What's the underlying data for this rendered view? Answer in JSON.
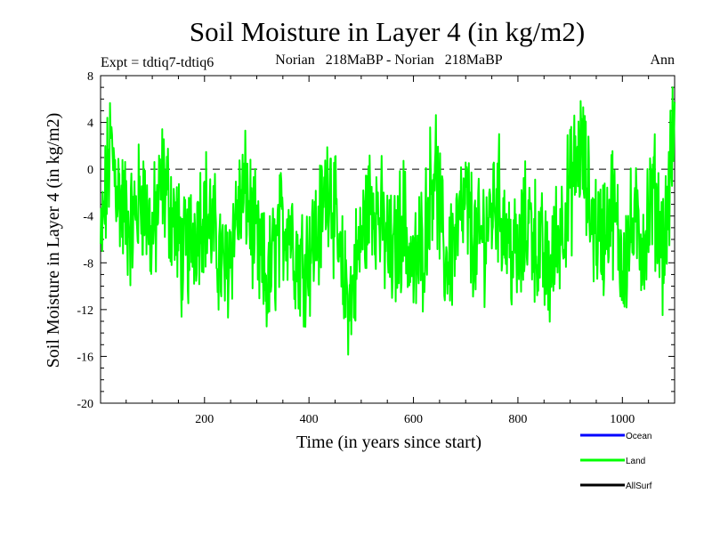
{
  "chart_data": {
    "type": "line",
    "title": "Soil Moisture in Layer 4 (in kg/m2)",
    "subtitle_left": "Expt = tdtiq7-tdtiq6",
    "subtitle_center": "Norian   218MaBP - Norian   218MaBP",
    "subtitle_right": "Ann",
    "xlabel": "Time (in years since start)",
    "ylabel": "Soil Moisture in Layer 4 (in kg/m2)",
    "xlim": [
      1,
      1100
    ],
    "ylim": [
      -20,
      8
    ],
    "x_ticks": [
      200,
      400,
      600,
      800,
      1000
    ],
    "y_ticks": [
      -20,
      -16,
      -12,
      -8,
      -4,
      0,
      4,
      8
    ],
    "reference_line": 0,
    "legend": [
      {
        "name": "Ocean",
        "color": "#0000ff"
      },
      {
        "name": "Land",
        "color": "#00ff00"
      },
      {
        "name": "AllSurf",
        "color": "#000000"
      }
    ],
    "series": [
      {
        "name": "Land",
        "color": "#00ff00",
        "x": [
          1,
          20,
          40,
          60,
          80,
          100,
          120,
          140,
          160,
          180,
          200,
          220,
          240,
          260,
          280,
          300,
          320,
          340,
          360,
          380,
          400,
          420,
          440,
          460,
          480,
          500,
          520,
          540,
          560,
          580,
          600,
          620,
          640,
          660,
          680,
          700,
          720,
          740,
          760,
          780,
          800,
          820,
          840,
          860,
          880,
          900,
          920,
          940,
          960,
          980,
          1000,
          1020,
          1040,
          1060,
          1080,
          1100
        ],
        "values": [
          -7,
          2,
          -3,
          -5,
          -2,
          -6,
          -1,
          -4,
          -8,
          -5,
          -3,
          -6,
          -9,
          -4,
          -2,
          -7,
          -10,
          -6,
          -4,
          -8,
          -7,
          -5,
          0,
          -9,
          -11,
          -6,
          -2,
          -5,
          -8,
          -4,
          -9,
          -6,
          1,
          -8,
          -6,
          -3,
          -7,
          -5,
          -2,
          -6,
          -8,
          -4,
          -7,
          -9,
          -5,
          -2,
          2,
          -4,
          -6,
          -3,
          -8,
          -5,
          -6,
          -2,
          -7,
          4
        ]
      }
    ]
  }
}
